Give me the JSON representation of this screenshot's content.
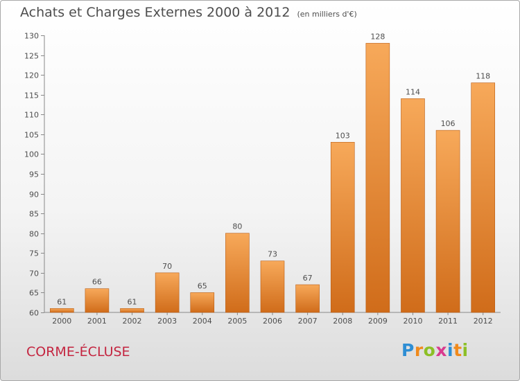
{
  "header": {
    "title": "Achats et Charges Externes 2000 à 2012",
    "unit": "(en milliers d'€)"
  },
  "footer": {
    "city": "CORME-ÉCLUSE",
    "brand": "Proxiti",
    "brand_letters": [
      {
        "ch": "P",
        "color": "#2e8ed4"
      },
      {
        "ch": "r",
        "color": "#f08a1c"
      },
      {
        "ch": "o",
        "color": "#8cbf26"
      },
      {
        "ch": "x",
        "color": "#d93a8f"
      },
      {
        "ch": "i",
        "color": "#2e8ed4"
      },
      {
        "ch": "t",
        "color": "#f08a1c"
      },
      {
        "ch": "i",
        "color": "#8cbf26"
      }
    ]
  },
  "colors": {
    "bar_light": "#f7a95a",
    "bar_dark": "#d06c1a",
    "bar_edge": "#b85c14",
    "city": "#c42540",
    "text": "#4d4d4d"
  },
  "chart_data": {
    "type": "bar",
    "categories": [
      "2000",
      "2001",
      "2002",
      "2003",
      "2004",
      "2005",
      "2006",
      "2007",
      "2008",
      "2009",
      "2010",
      "2011",
      "2012"
    ],
    "values": [
      61,
      66,
      61,
      70,
      65,
      80,
      73,
      67,
      103,
      128,
      114,
      106,
      118
    ],
    "ylim": [
      60,
      130
    ],
    "yticks": [
      60,
      65,
      70,
      75,
      80,
      85,
      90,
      95,
      100,
      105,
      110,
      115,
      120,
      125,
      130
    ],
    "grid": false,
    "title": "Achats et Charges Externes 2000 à 2012",
    "subtitle": "(en milliers d'€)"
  }
}
